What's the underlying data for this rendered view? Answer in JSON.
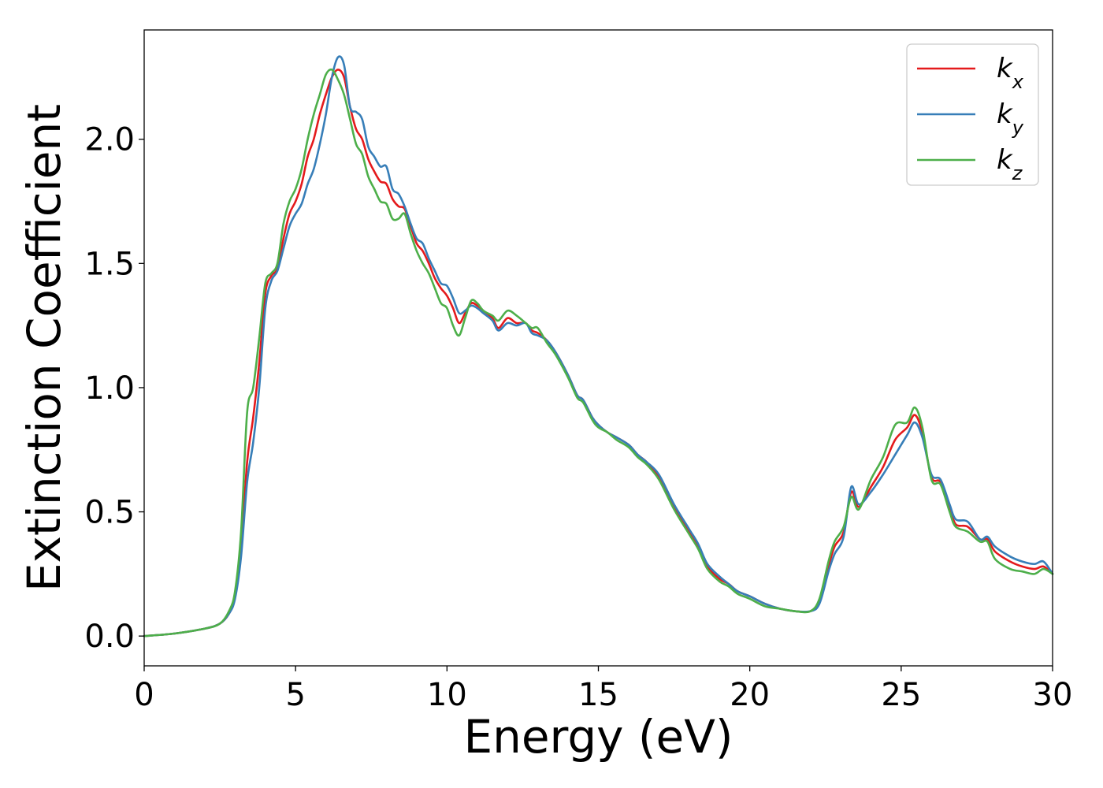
{
  "chart_data": {
    "type": "line",
    "title": "",
    "xlabel": "Energy (eV)",
    "ylabel": "Extinction Coefficient",
    "xlim": [
      0,
      30
    ],
    "ylim": [
      -0.12,
      2.44
    ],
    "xticks": [
      0,
      5,
      10,
      15,
      20,
      25,
      30
    ],
    "xtick_labels": [
      "0",
      "5",
      "10",
      "15",
      "20",
      "25",
      "30"
    ],
    "yticks": [
      0.0,
      0.5,
      1.0,
      1.5,
      2.0
    ],
    "ytick_labels": [
      "0.0",
      "0.5",
      "1.0",
      "1.5",
      "2.0"
    ],
    "grid": false,
    "legend_position": "top-right",
    "series": [
      {
        "name": "k_x",
        "legend": {
          "base": "k",
          "sub": "x"
        },
        "color": "#e41a1c",
        "points": [
          [
            0,
            0
          ],
          [
            1,
            0.01
          ],
          [
            2,
            0.03
          ],
          [
            2.5,
            0.05
          ],
          [
            2.8,
            0.09
          ],
          [
            3.0,
            0.16
          ],
          [
            3.2,
            0.35
          ],
          [
            3.4,
            0.7
          ],
          [
            3.6,
            0.88
          ],
          [
            3.8,
            1.1
          ],
          [
            4.0,
            1.38
          ],
          [
            4.2,
            1.45
          ],
          [
            4.4,
            1.48
          ],
          [
            4.6,
            1.6
          ],
          [
            4.8,
            1.7
          ],
          [
            5.0,
            1.75
          ],
          [
            5.2,
            1.82
          ],
          [
            5.4,
            1.93
          ],
          [
            5.6,
            2.0
          ],
          [
            5.8,
            2.1
          ],
          [
            6.0,
            2.18
          ],
          [
            6.2,
            2.25
          ],
          [
            6.4,
            2.28
          ],
          [
            6.6,
            2.25
          ],
          [
            6.8,
            2.13
          ],
          [
            7.0,
            2.04
          ],
          [
            7.2,
            2.0
          ],
          [
            7.4,
            1.92
          ],
          [
            7.6,
            1.87
          ],
          [
            7.8,
            1.83
          ],
          [
            8.0,
            1.82
          ],
          [
            8.2,
            1.76
          ],
          [
            8.4,
            1.73
          ],
          [
            8.6,
            1.72
          ],
          [
            8.8,
            1.65
          ],
          [
            9.0,
            1.58
          ],
          [
            9.2,
            1.55
          ],
          [
            9.4,
            1.5
          ],
          [
            9.6,
            1.44
          ],
          [
            9.8,
            1.4
          ],
          [
            10.0,
            1.37
          ],
          [
            10.2,
            1.32
          ],
          [
            10.4,
            1.26
          ],
          [
            10.6,
            1.3
          ],
          [
            10.8,
            1.34
          ],
          [
            11.0,
            1.33
          ],
          [
            11.2,
            1.31
          ],
          [
            11.5,
            1.28
          ],
          [
            11.7,
            1.24
          ],
          [
            12.0,
            1.28
          ],
          [
            12.3,
            1.26
          ],
          [
            12.6,
            1.26
          ],
          [
            12.8,
            1.23
          ],
          [
            13.0,
            1.22
          ],
          [
            13.3,
            1.19
          ],
          [
            13.6,
            1.14
          ],
          [
            14.0,
            1.05
          ],
          [
            14.3,
            0.97
          ],
          [
            14.5,
            0.95
          ],
          [
            14.8,
            0.88
          ],
          [
            15.0,
            0.85
          ],
          [
            15.3,
            0.82
          ],
          [
            15.6,
            0.8
          ],
          [
            16.0,
            0.77
          ],
          [
            16.3,
            0.73
          ],
          [
            16.6,
            0.7
          ],
          [
            17.0,
            0.64
          ],
          [
            17.5,
            0.52
          ],
          [
            18.0,
            0.42
          ],
          [
            18.3,
            0.36
          ],
          [
            18.6,
            0.28
          ],
          [
            19.0,
            0.23
          ],
          [
            19.3,
            0.21
          ],
          [
            19.6,
            0.18
          ],
          [
            20.0,
            0.16
          ],
          [
            20.5,
            0.13
          ],
          [
            21.0,
            0.11
          ],
          [
            21.5,
            0.1
          ],
          [
            22.0,
            0.1
          ],
          [
            22.3,
            0.14
          ],
          [
            22.6,
            0.28
          ],
          [
            22.8,
            0.36
          ],
          [
            23.1,
            0.42
          ],
          [
            23.35,
            0.58
          ],
          [
            23.6,
            0.52
          ],
          [
            24.0,
            0.6
          ],
          [
            24.4,
            0.68
          ],
          [
            24.8,
            0.79
          ],
          [
            25.2,
            0.84
          ],
          [
            25.45,
            0.89
          ],
          [
            25.7,
            0.82
          ],
          [
            26.0,
            0.64
          ],
          [
            26.3,
            0.62
          ],
          [
            26.6,
            0.52
          ],
          [
            26.8,
            0.45
          ],
          [
            27.2,
            0.44
          ],
          [
            27.6,
            0.39
          ],
          [
            27.85,
            0.39
          ],
          [
            28.1,
            0.34
          ],
          [
            28.6,
            0.3
          ],
          [
            29.0,
            0.28
          ],
          [
            29.4,
            0.27
          ],
          [
            29.7,
            0.28
          ],
          [
            30.0,
            0.25
          ]
        ]
      },
      {
        "name": "k_y",
        "legend": {
          "base": "k",
          "sub": "y"
        },
        "color": "#377eb8",
        "points": [
          [
            0,
            0
          ],
          [
            1,
            0.01
          ],
          [
            2,
            0.03
          ],
          [
            2.5,
            0.05
          ],
          [
            2.8,
            0.09
          ],
          [
            3.0,
            0.15
          ],
          [
            3.2,
            0.32
          ],
          [
            3.4,
            0.62
          ],
          [
            3.6,
            0.78
          ],
          [
            3.8,
            1.0
          ],
          [
            4.0,
            1.32
          ],
          [
            4.2,
            1.43
          ],
          [
            4.4,
            1.47
          ],
          [
            4.6,
            1.56
          ],
          [
            4.8,
            1.65
          ],
          [
            5.0,
            1.7
          ],
          [
            5.2,
            1.74
          ],
          [
            5.4,
            1.82
          ],
          [
            5.6,
            1.88
          ],
          [
            5.8,
            1.98
          ],
          [
            6.0,
            2.1
          ],
          [
            6.2,
            2.25
          ],
          [
            6.4,
            2.33
          ],
          [
            6.6,
            2.3
          ],
          [
            6.8,
            2.13
          ],
          [
            7.0,
            2.11
          ],
          [
            7.2,
            2.08
          ],
          [
            7.4,
            1.97
          ],
          [
            7.6,
            1.93
          ],
          [
            7.8,
            1.89
          ],
          [
            8.0,
            1.89
          ],
          [
            8.2,
            1.8
          ],
          [
            8.4,
            1.78
          ],
          [
            8.6,
            1.73
          ],
          [
            8.8,
            1.66
          ],
          [
            9.0,
            1.6
          ],
          [
            9.2,
            1.58
          ],
          [
            9.4,
            1.52
          ],
          [
            9.6,
            1.47
          ],
          [
            9.8,
            1.42
          ],
          [
            10.0,
            1.41
          ],
          [
            10.2,
            1.36
          ],
          [
            10.4,
            1.3
          ],
          [
            10.6,
            1.31
          ],
          [
            10.8,
            1.33
          ],
          [
            11.0,
            1.32
          ],
          [
            11.2,
            1.3
          ],
          [
            11.5,
            1.27
          ],
          [
            11.7,
            1.23
          ],
          [
            12.0,
            1.26
          ],
          [
            12.3,
            1.25
          ],
          [
            12.6,
            1.26
          ],
          [
            12.8,
            1.22
          ],
          [
            13.0,
            1.21
          ],
          [
            13.3,
            1.19
          ],
          [
            13.6,
            1.14
          ],
          [
            14.0,
            1.05
          ],
          [
            14.3,
            0.97
          ],
          [
            14.5,
            0.95
          ],
          [
            14.8,
            0.88
          ],
          [
            15.0,
            0.85
          ],
          [
            15.3,
            0.82
          ],
          [
            15.6,
            0.8
          ],
          [
            16.0,
            0.77
          ],
          [
            16.3,
            0.73
          ],
          [
            16.6,
            0.7
          ],
          [
            17.0,
            0.65
          ],
          [
            17.5,
            0.53
          ],
          [
            18.0,
            0.43
          ],
          [
            18.3,
            0.37
          ],
          [
            18.6,
            0.29
          ],
          [
            19.0,
            0.24
          ],
          [
            19.3,
            0.21
          ],
          [
            19.6,
            0.18
          ],
          [
            20.0,
            0.16
          ],
          [
            20.5,
            0.13
          ],
          [
            21.0,
            0.11
          ],
          [
            21.5,
            0.1
          ],
          [
            22.0,
            0.1
          ],
          [
            22.3,
            0.13
          ],
          [
            22.6,
            0.26
          ],
          [
            22.8,
            0.33
          ],
          [
            23.1,
            0.4
          ],
          [
            23.35,
            0.6
          ],
          [
            23.6,
            0.53
          ],
          [
            24.0,
            0.58
          ],
          [
            24.4,
            0.65
          ],
          [
            24.8,
            0.73
          ],
          [
            25.2,
            0.81
          ],
          [
            25.45,
            0.86
          ],
          [
            25.7,
            0.8
          ],
          [
            26.0,
            0.65
          ],
          [
            26.3,
            0.63
          ],
          [
            26.6,
            0.53
          ],
          [
            26.8,
            0.47
          ],
          [
            27.2,
            0.46
          ],
          [
            27.6,
            0.39
          ],
          [
            27.85,
            0.4
          ],
          [
            28.1,
            0.36
          ],
          [
            28.6,
            0.32
          ],
          [
            29.0,
            0.3
          ],
          [
            29.4,
            0.29
          ],
          [
            29.7,
            0.3
          ],
          [
            30.0,
            0.25
          ]
        ]
      },
      {
        "name": "k_z",
        "legend": {
          "base": "k",
          "sub": "z"
        },
        "color": "#4daf4a",
        "points": [
          [
            0,
            0
          ],
          [
            1,
            0.01
          ],
          [
            2,
            0.03
          ],
          [
            2.5,
            0.05
          ],
          [
            2.8,
            0.1
          ],
          [
            3.0,
            0.18
          ],
          [
            3.2,
            0.42
          ],
          [
            3.4,
            0.9
          ],
          [
            3.6,
            1.0
          ],
          [
            3.8,
            1.2
          ],
          [
            4.0,
            1.42
          ],
          [
            4.2,
            1.46
          ],
          [
            4.4,
            1.5
          ],
          [
            4.6,
            1.66
          ],
          [
            4.8,
            1.75
          ],
          [
            5.0,
            1.8
          ],
          [
            5.2,
            1.88
          ],
          [
            5.4,
            2.0
          ],
          [
            5.6,
            2.1
          ],
          [
            5.8,
            2.18
          ],
          [
            6.0,
            2.26
          ],
          [
            6.2,
            2.28
          ],
          [
            6.4,
            2.24
          ],
          [
            6.6,
            2.18
          ],
          [
            6.8,
            2.08
          ],
          [
            7.0,
            1.98
          ],
          [
            7.2,
            1.94
          ],
          [
            7.4,
            1.85
          ],
          [
            7.6,
            1.8
          ],
          [
            7.8,
            1.75
          ],
          [
            8.0,
            1.74
          ],
          [
            8.2,
            1.68
          ],
          [
            8.4,
            1.68
          ],
          [
            8.6,
            1.7
          ],
          [
            8.8,
            1.62
          ],
          [
            9.0,
            1.55
          ],
          [
            9.2,
            1.5
          ],
          [
            9.4,
            1.46
          ],
          [
            9.6,
            1.4
          ],
          [
            9.8,
            1.34
          ],
          [
            10.0,
            1.32
          ],
          [
            10.2,
            1.25
          ],
          [
            10.4,
            1.21
          ],
          [
            10.6,
            1.28
          ],
          [
            10.8,
            1.35
          ],
          [
            11.0,
            1.34
          ],
          [
            11.2,
            1.31
          ],
          [
            11.5,
            1.29
          ],
          [
            11.7,
            1.27
          ],
          [
            12.0,
            1.31
          ],
          [
            12.3,
            1.29
          ],
          [
            12.6,
            1.26
          ],
          [
            12.8,
            1.24
          ],
          [
            13.0,
            1.24
          ],
          [
            13.3,
            1.18
          ],
          [
            13.6,
            1.13
          ],
          [
            14.0,
            1.04
          ],
          [
            14.3,
            0.96
          ],
          [
            14.5,
            0.94
          ],
          [
            14.8,
            0.87
          ],
          [
            15.0,
            0.84
          ],
          [
            15.3,
            0.82
          ],
          [
            15.6,
            0.79
          ],
          [
            16.0,
            0.76
          ],
          [
            16.3,
            0.72
          ],
          [
            16.6,
            0.69
          ],
          [
            17.0,
            0.63
          ],
          [
            17.5,
            0.51
          ],
          [
            18.0,
            0.41
          ],
          [
            18.3,
            0.35
          ],
          [
            18.6,
            0.27
          ],
          [
            19.0,
            0.22
          ],
          [
            19.3,
            0.2
          ],
          [
            19.6,
            0.17
          ],
          [
            20.0,
            0.15
          ],
          [
            20.5,
            0.12
          ],
          [
            21.0,
            0.11
          ],
          [
            21.5,
            0.1
          ],
          [
            22.0,
            0.1
          ],
          [
            22.3,
            0.15
          ],
          [
            22.6,
            0.3
          ],
          [
            22.8,
            0.38
          ],
          [
            23.1,
            0.44
          ],
          [
            23.35,
            0.56
          ],
          [
            23.6,
            0.51
          ],
          [
            24.0,
            0.63
          ],
          [
            24.4,
            0.72
          ],
          [
            24.8,
            0.85
          ],
          [
            25.2,
            0.86
          ],
          [
            25.45,
            0.92
          ],
          [
            25.7,
            0.84
          ],
          [
            26.0,
            0.63
          ],
          [
            26.3,
            0.61
          ],
          [
            26.6,
            0.5
          ],
          [
            26.8,
            0.44
          ],
          [
            27.2,
            0.42
          ],
          [
            27.6,
            0.38
          ],
          [
            27.85,
            0.38
          ],
          [
            28.1,
            0.31
          ],
          [
            28.6,
            0.27
          ],
          [
            29.0,
            0.26
          ],
          [
            29.4,
            0.25
          ],
          [
            29.7,
            0.27
          ],
          [
            30.0,
            0.25
          ]
        ]
      }
    ]
  }
}
